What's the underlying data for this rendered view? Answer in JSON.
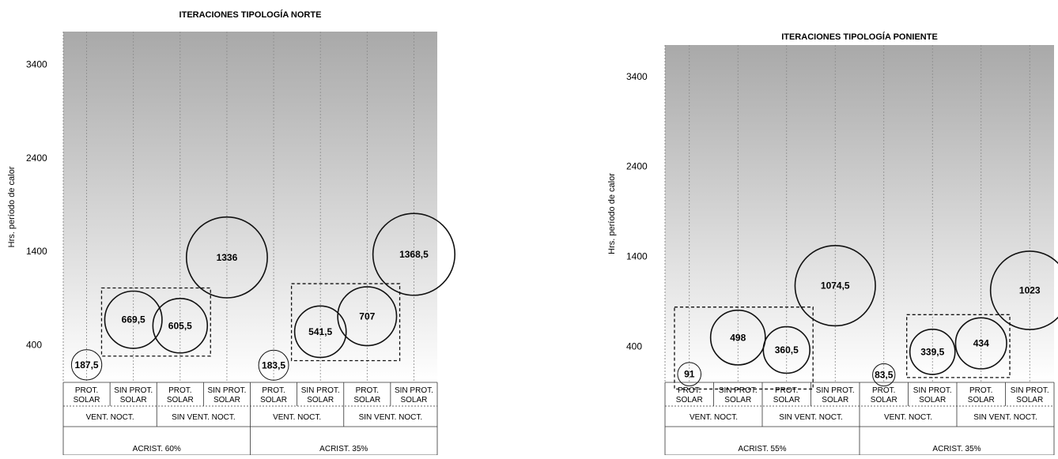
{
  "chart_data": [
    {
      "type": "bubble",
      "title": "ITERACIONES TIPOLOGÍA NORTE",
      "ylabel": "Hrs. período de calor",
      "yticks": [
        400,
        1400,
        2400,
        3400
      ],
      "ylim": [
        0,
        3750
      ],
      "categories": [
        {
          "line1": "PROT.",
          "line2": "SOLAR"
        },
        {
          "line1": "SIN PROT.",
          "line2": "SOLAR"
        },
        {
          "line1": "PROT.",
          "line2": "SOLAR"
        },
        {
          "line1": "SIN PROT.",
          "line2": "SOLAR"
        },
        {
          "line1": "PROT.",
          "line2": "SOLAR"
        },
        {
          "line1": "SIN PROT.",
          "line2": "SOLAR"
        },
        {
          "line1": "PROT.",
          "line2": "SOLAR"
        },
        {
          "line1": "SIN PROT.",
          "line2": "SOLAR"
        }
      ],
      "groups_level2": [
        "VENT. NOCT.",
        "SIN VENT. NOCT.",
        "VENT. NOCT.",
        "SIN VENT. NOCT."
      ],
      "groups_level3": [
        "ACRIST. 60%",
        "ACRIST. 35%"
      ],
      "points": [
        {
          "category": 0,
          "value": 187.5,
          "label": "187,5"
        },
        {
          "category": 1,
          "value": 669.5,
          "label": "669,5"
        },
        {
          "category": 2,
          "value": 605.5,
          "label": "605,5"
        },
        {
          "category": 3,
          "value": 1336,
          "label": "1336"
        },
        {
          "category": 4,
          "value": 183.5,
          "label": "183,5"
        },
        {
          "category": 5,
          "value": 541.5,
          "label": "541,5"
        },
        {
          "category": 6,
          "value": 707,
          "label": "707"
        },
        {
          "category": 7,
          "value": 1368.5,
          "label": "1368,5"
        }
      ],
      "dashed_groups": [
        [
          1,
          2
        ],
        [
          5,
          6
        ]
      ]
    },
    {
      "type": "bubble",
      "title": "ITERACIONES TIPOLOGÍA PONIENTE",
      "ylabel": "Hrs. período de calor",
      "yticks": [
        400,
        1400,
        2400,
        3400
      ],
      "ylim": [
        0,
        3750
      ],
      "categories": [
        {
          "line1": "PROT.",
          "line2": "SOLAR"
        },
        {
          "line1": "SIN PROT.",
          "line2": "SOLAR"
        },
        {
          "line1": "PROT.",
          "line2": "SOLAR"
        },
        {
          "line1": "SIN PROT.",
          "line2": "SOLAR"
        },
        {
          "line1": "PROT.",
          "line2": "SOLAR"
        },
        {
          "line1": "SIN PROT.",
          "line2": "SOLAR"
        },
        {
          "line1": "PROT.",
          "line2": "SOLAR"
        },
        {
          "line1": "SIN PROT.",
          "line2": "SOLAR"
        }
      ],
      "groups_level2": [
        "VENT. NOCT.",
        "SIN VENT. NOCT.",
        "VENT. NOCT.",
        "SIN VENT. NOCT."
      ],
      "groups_level3": [
        "ACRIST. 55%",
        "ACRIST. 35%"
      ],
      "points": [
        {
          "category": 0,
          "value": 91,
          "label": "91"
        },
        {
          "category": 1,
          "value": 498,
          "label": "498"
        },
        {
          "category": 2,
          "value": 360.5,
          "label": "360,5"
        },
        {
          "category": 3,
          "value": 1074.5,
          "label": "1074,5"
        },
        {
          "category": 4,
          "value": 83.5,
          "label": "83,5"
        },
        {
          "category": 5,
          "value": 339.5,
          "label": "339,5"
        },
        {
          "category": 6,
          "value": 434,
          "label": "434"
        },
        {
          "category": 7,
          "value": 1023,
          "label": "1023"
        }
      ],
      "dashed_groups": [
        [
          0,
          2
        ],
        [
          5,
          6
        ]
      ]
    }
  ]
}
